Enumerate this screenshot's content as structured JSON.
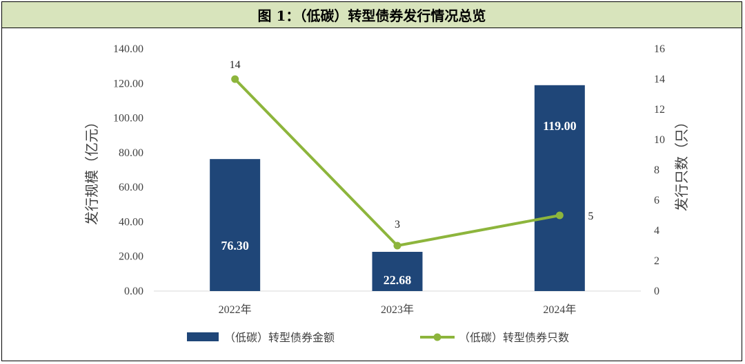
{
  "title": "图 1：（低碳）转型债券发行情况总览",
  "colors": {
    "bar": "#1f4678",
    "line": "#8db53c",
    "title_bg": "#d8e4bc"
  },
  "chart_data": {
    "type": "bar",
    "categories": [
      "2022年",
      "2023年",
      "2024年"
    ],
    "series": [
      {
        "name": "（低碳）转型债券金额",
        "type": "bar",
        "axis": "left",
        "values": [
          76.3,
          22.68,
          119.0
        ],
        "labels": [
          "76.30",
          "22.68",
          "119.00"
        ]
      },
      {
        "name": "（低碳）转型债券只数",
        "type": "line",
        "axis": "right",
        "values": [
          14,
          3,
          5
        ],
        "labels": [
          "14",
          "3",
          "5"
        ]
      }
    ],
    "ylabel": "发行规模（亿元）",
    "y2label": "发行只数（只）",
    "ylim": [
      0,
      140
    ],
    "y2lim": [
      0,
      16
    ],
    "yticks": [
      "0.00",
      "20.00",
      "40.00",
      "60.00",
      "80.00",
      "100.00",
      "120.00",
      "140.00"
    ],
    "y2ticks": [
      "0",
      "2",
      "4",
      "6",
      "8",
      "10",
      "12",
      "14",
      "16"
    ],
    "grid": false,
    "legend": "bottom"
  }
}
